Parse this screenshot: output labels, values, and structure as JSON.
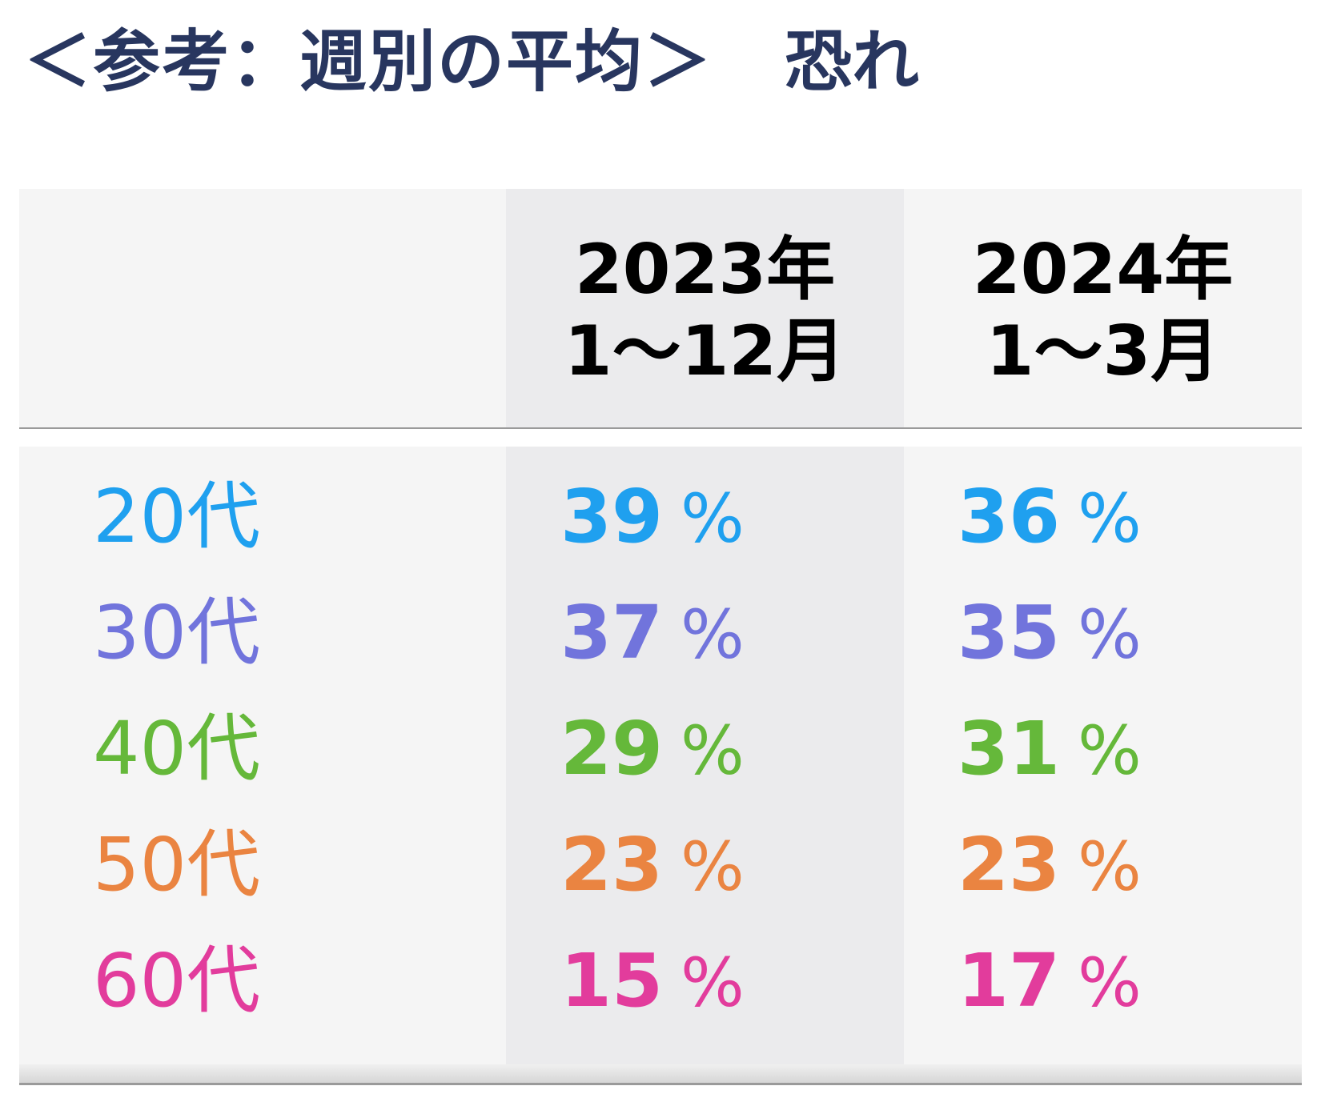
{
  "title": {
    "main": "＜参考：週別の平均＞",
    "sub": "恐れ"
  },
  "table": {
    "columns": [
      {
        "line1": "2023年",
        "line2": "1〜12月"
      },
      {
        "line1": "2024年",
        "line2": "1〜3月"
      }
    ],
    "percent_sign": "%",
    "rows": [
      {
        "label": "20代",
        "color": "#1fa0ef",
        "values": [
          "39",
          "36"
        ]
      },
      {
        "label": "30代",
        "color": "#7174dc",
        "values": [
          "37",
          "35"
        ]
      },
      {
        "label": "40代",
        "color": "#65b83a",
        "values": [
          "29",
          "31"
        ]
      },
      {
        "label": "50代",
        "color": "#ea8441",
        "values": [
          "23",
          "23"
        ]
      },
      {
        "label": "60代",
        "color": "#e23c9c",
        "values": [
          "15",
          "17"
        ]
      }
    ]
  },
  "chart_data": {
    "type": "table",
    "title": "＜参考：週別の平均＞ 恐れ",
    "columns": [
      "2023年 1〜12月",
      "2024年 1〜3月"
    ],
    "rows": [
      "20代",
      "30代",
      "40代",
      "50代",
      "60代"
    ],
    "values": [
      [
        39,
        36
      ],
      [
        37,
        35
      ],
      [
        29,
        31
      ],
      [
        23,
        23
      ],
      [
        15,
        17
      ]
    ],
    "unit": "%"
  }
}
